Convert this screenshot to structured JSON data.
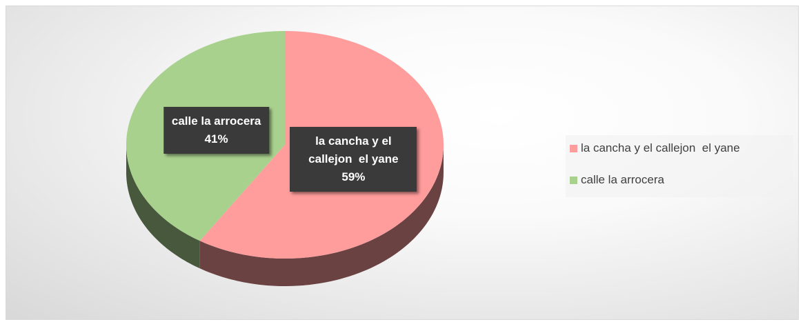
{
  "chart_data": {
    "type": "pie",
    "categories": [
      "la cancha y el callejon  el yane",
      "calle la arrocera"
    ],
    "values": [
      59,
      41
    ],
    "value_labels": [
      "59%",
      "41%"
    ],
    "colors": [
      "#ff9c9c",
      "#a9d18e"
    ],
    "legend": "right"
  }
}
